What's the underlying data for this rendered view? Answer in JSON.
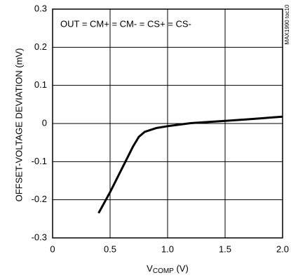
{
  "chart_data": {
    "type": "line",
    "xlabel": "V",
    "xlabel_subscript": "COMP",
    "xlabel_unit": "(V)",
    "ylabel": "OFFSET-VOLTAGE DEVIATION (mV)",
    "annotation": "OUT = CM+ = CM- = CS+ = CS-",
    "side_note": "MAX1990 toc10",
    "grid": true,
    "xlim": [
      0,
      2
    ],
    "ylim": [
      -0.3,
      0.3
    ],
    "xticks": [
      0,
      0.5,
      {
        "value": 1,
        "label": "1.0"
      },
      1.5,
      {
        "value": 2,
        "label": "2.0"
      }
    ],
    "yticks": [
      -0.3,
      -0.2,
      -0.1,
      0,
      0.1,
      0.2,
      0.3
    ],
    "x": [
      0.4,
      0.5,
      0.6,
      0.65,
      0.7,
      0.75,
      0.8,
      0.9,
      1.0,
      1.1,
      1.2,
      1.3,
      1.5,
      1.7,
      2.0
    ],
    "series": [
      {
        "color": "#000000",
        "values": [
          -0.235,
          -0.18,
          -0.12,
          -0.09,
          -0.06,
          -0.035,
          -0.022,
          -0.012,
          -0.007,
          -0.003,
          0.001,
          0.003,
          0.007,
          0.011,
          0.018
        ]
      }
    ]
  }
}
